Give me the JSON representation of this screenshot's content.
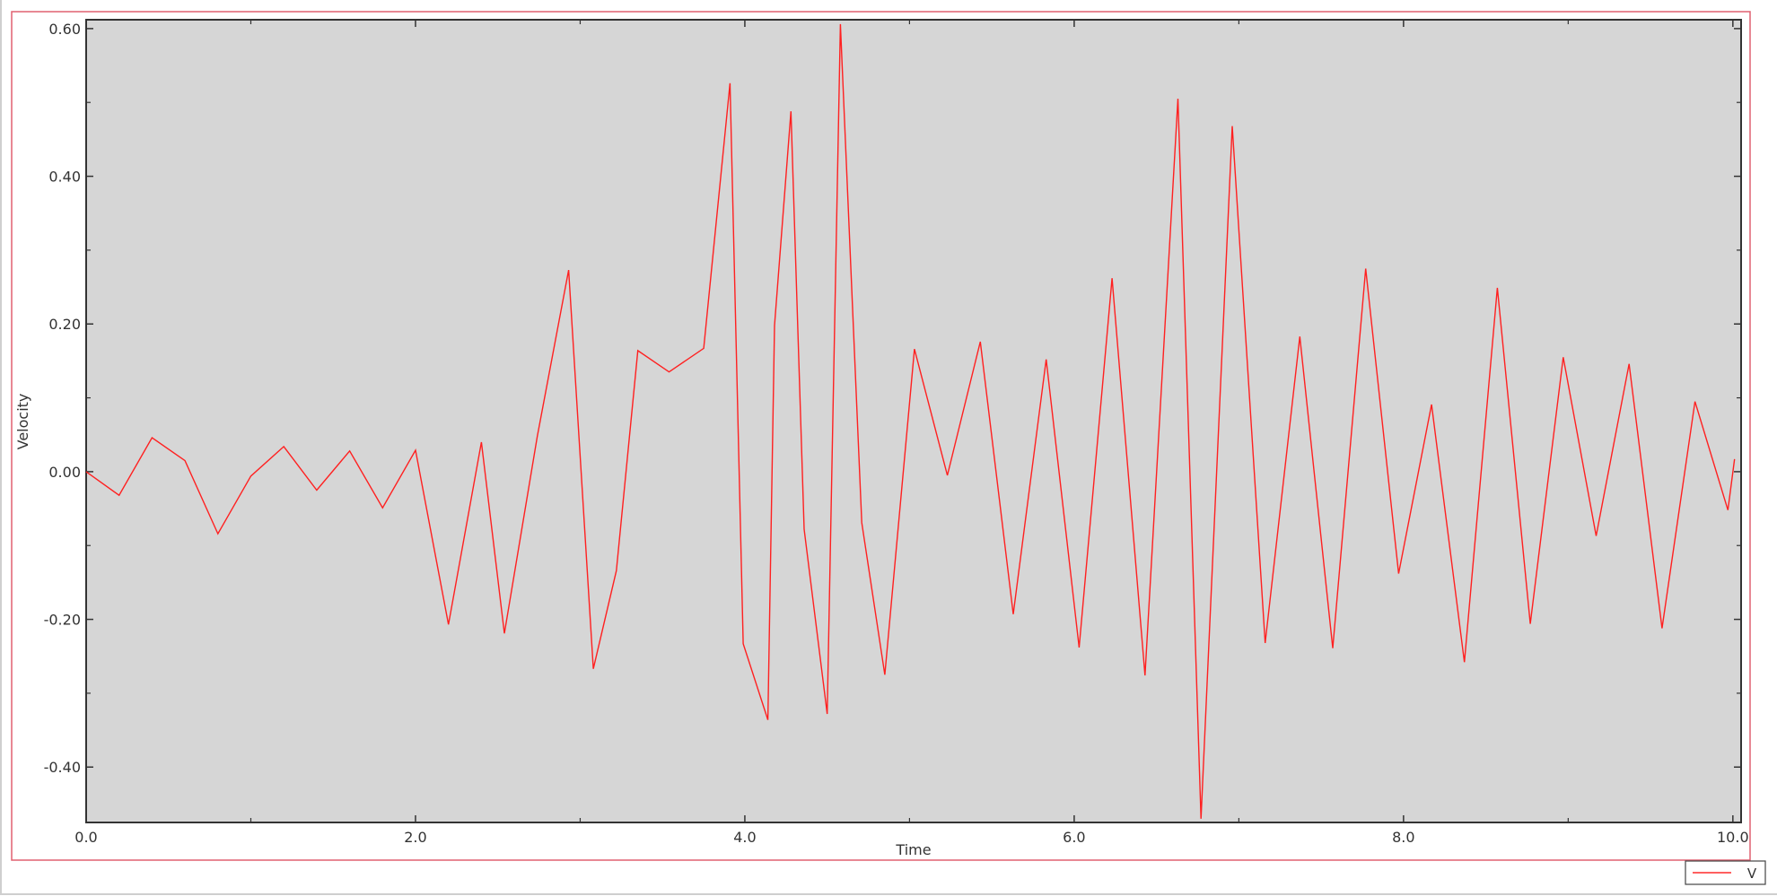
{
  "chart_data": {
    "type": "line",
    "title": "",
    "xlabel": "Time",
    "ylabel": "Velocity",
    "xlim": [
      0,
      10.05
    ],
    "ylim": [
      -0.475,
      0.612
    ],
    "xticks": [
      "0.0",
      "2.0",
      "4.0",
      "6.0",
      "8.0",
      "10.0"
    ],
    "xtick_values": [
      0,
      2,
      4,
      6,
      8,
      10
    ],
    "yticks": [
      "-0.40",
      "-0.20",
      "0.00",
      "0.20",
      "0.40",
      "0.60"
    ],
    "ytick_values": [
      -0.4,
      -0.2,
      0,
      0.2,
      0.4,
      0.6
    ],
    "grid": false,
    "legend_position": "bottom-right",
    "plot_background": "#d6d6d6",
    "frame_color": "#e06070",
    "series": [
      {
        "name": "V",
        "color": "#ff2020",
        "x": [
          0,
          0.2,
          0.4,
          0.6,
          0.8,
          1.0,
          1.2,
          1.4,
          1.6,
          1.8,
          2.0,
          2.2,
          2.4,
          2.54,
          2.74,
          2.93,
          3.08,
          3.22,
          3.35,
          3.54,
          3.75,
          3.91,
          3.99,
          4.14,
          4.18,
          4.28,
          4.36,
          4.5,
          4.58,
          4.71,
          4.85,
          5.03,
          5.23,
          5.43,
          5.63,
          5.83,
          6.03,
          6.23,
          6.43,
          6.63,
          6.77,
          6.96,
          7.16,
          7.37,
          7.57,
          7.77,
          7.97,
          8.17,
          8.37,
          8.57,
          8.77,
          8.97,
          9.17,
          9.37,
          9.57,
          9.77,
          9.97,
          10.01
        ],
        "y": [
          0,
          -0.032,
          0.046,
          0.015,
          -0.084,
          -0.006,
          0.034,
          -0.025,
          0.028,
          -0.049,
          0.029,
          -0.207,
          0.04,
          -0.219,
          0.048,
          0.273,
          -0.267,
          -0.134,
          0.164,
          0.135,
          0.167,
          0.526,
          -0.233,
          -0.336,
          0.198,
          0.488,
          -0.078,
          -0.328,
          0.606,
          -0.069,
          -0.275,
          0.166,
          -0.005,
          0.176,
          -0.193,
          0.152,
          -0.238,
          0.262,
          -0.276,
          0.505,
          -0.47,
          0.468,
          -0.232,
          0.183,
          -0.239,
          0.275,
          -0.138,
          0.091,
          -0.258,
          0.249,
          -0.206,
          0.155,
          -0.087,
          0.146,
          -0.212,
          0.095,
          -0.052,
          0.017
        ]
      }
    ]
  }
}
